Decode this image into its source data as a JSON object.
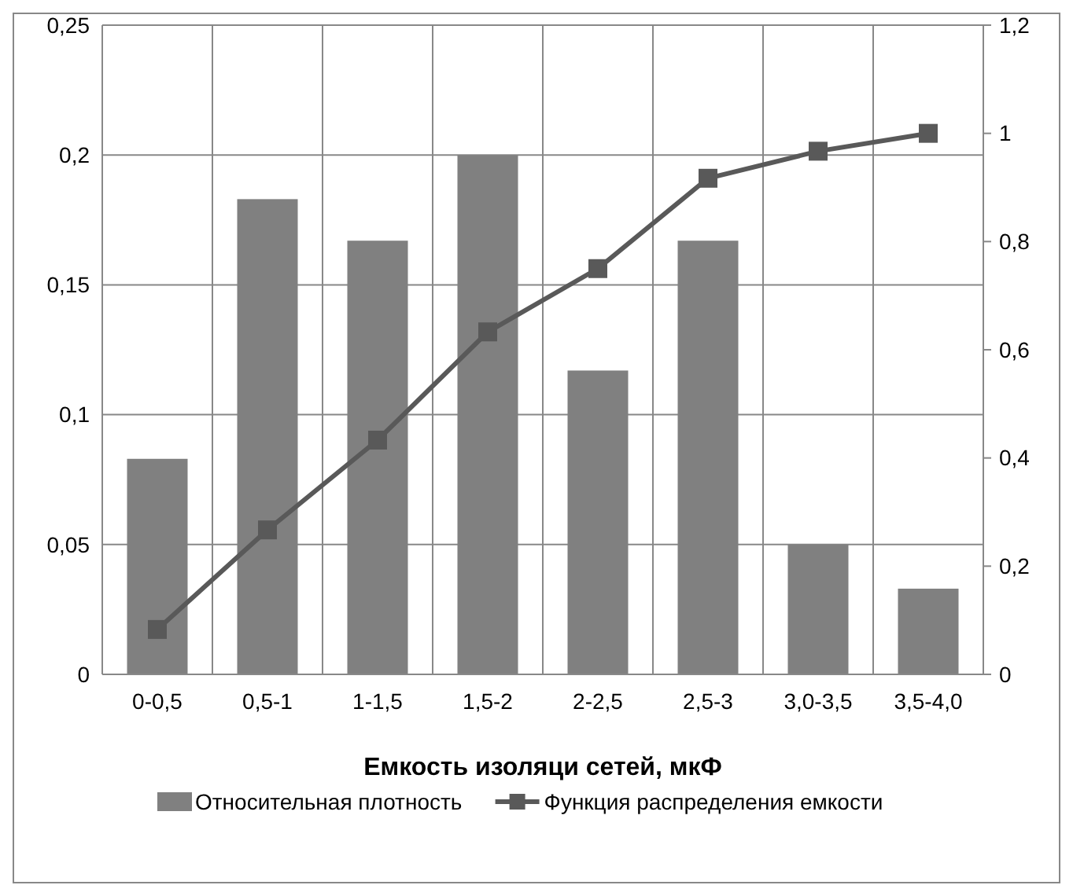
{
  "chart_data": {
    "type": "bar",
    "xlabel": "Емкость изоляци сетей, мкФ",
    "categories": [
      "0-0,5",
      "0,5-1",
      "1-1,5",
      "1,5-2",
      "2-2,5",
      "2,5-3",
      "3,0-3,5",
      "3,5-4,0"
    ],
    "series": [
      {
        "name": "Относительная плотность",
        "color": "#808080",
        "values": [
          0.083,
          0.183,
          0.167,
          0.2,
          0.117,
          0.167,
          0.05,
          0.033
        ]
      },
      {
        "name": "Функция распределения емкости",
        "type": "line",
        "axis": "y2",
        "color": "#595959",
        "marker": "square",
        "values": [
          0.083,
          0.267,
          0.433,
          0.633,
          0.75,
          0.917,
          0.967,
          1.0
        ]
      }
    ],
    "ylim": [
      0,
      0.25
    ],
    "yticks": [
      0,
      {
        "value": 0.05,
        "label": "0,05"
      },
      {
        "value": 0.1,
        "label": "0,1"
      },
      {
        "value": 0.15,
        "label": "0,15"
      },
      {
        "value": 0.2,
        "label": "0,2"
      },
      {
        "value": 0.25,
        "label": "0,25"
      }
    ],
    "y2lim": [
      0,
      1.2
    ],
    "y2ticks": [
      0,
      {
        "value": 0.2,
        "label": "0,2"
      },
      {
        "value": 0.4,
        "label": "0,4"
      },
      {
        "value": 0.6,
        "label": "0,6"
      },
      {
        "value": 0.8,
        "label": "0,8"
      },
      1,
      {
        "value": 1.2,
        "label": "1,2"
      }
    ],
    "grid": true,
    "legend": "bottom"
  }
}
